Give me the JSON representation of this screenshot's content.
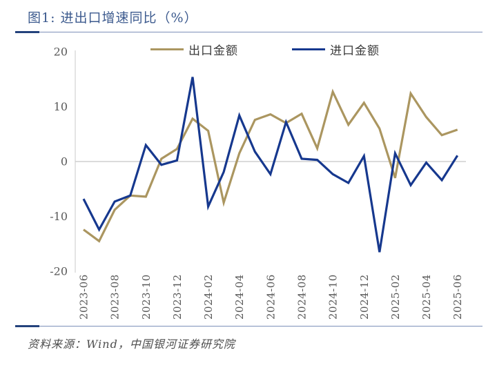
{
  "title": "图1: 进出口增速同比（%）",
  "source": "资料来源：Wind，中国银河证券研究院",
  "colors": {
    "export": "#ab9660",
    "import": "#16388e",
    "title_text": "#3c5a8e",
    "rule_line": "#7c8fb8",
    "rule_accent": "#24427c",
    "axis_line": "#c9c9c9",
    "zero_line": "#cfcfcf",
    "axis_text": "#595959",
    "legend_text": "#3a3a3a",
    "source_text": "#4d4d4d"
  },
  "chart_data": {
    "type": "line",
    "title": "图1: 进出口增速同比（%）",
    "xlabel": "",
    "ylabel": "",
    "ylim": [
      -20,
      20
    ],
    "yticks": [
      "20",
      "10",
      "0",
      "-10",
      "-20"
    ],
    "grid": "zero-line-only",
    "legend_position": "top",
    "x": [
      "2023-06",
      "2023-07",
      "2023-08",
      "2023-09",
      "2023-10",
      "2023-11",
      "2023-12",
      "2024-01",
      "2024-02",
      "2024-03",
      "2024-04",
      "2024-05",
      "2024-06",
      "2024-07",
      "2024-08",
      "2024-09",
      "2024-10",
      "2024-11",
      "2024-12",
      "2025-01",
      "2025-02",
      "2025-03",
      "2025-04",
      "2025-05",
      "2025-06"
    ],
    "xtick_labels": [
      "2023-06",
      "2023-08",
      "2023-10",
      "2023-12",
      "2024-02",
      "2024-04",
      "2024-06",
      "2024-08",
      "2024-10",
      "2024-12",
      "2025-02",
      "2025-04",
      "2025-06"
    ],
    "series": [
      {
        "name": "出口金额",
        "color_key": "export",
        "values": [
          -12.4,
          -14.5,
          -8.8,
          -6.2,
          -6.4,
          0.5,
          2.3,
          7.8,
          5.6,
          -7.5,
          1.5,
          7.6,
          8.6,
          7.0,
          8.7,
          2.4,
          12.7,
          6.7,
          10.7,
          6.0,
          -3.0,
          12.4,
          8.1,
          4.8,
          5.8
        ]
      },
      {
        "name": "进口金额",
        "color_key": "import",
        "values": [
          -6.8,
          -12.4,
          -7.3,
          -6.2,
          3.0,
          -0.6,
          0.2,
          15.4,
          -8.2,
          -1.9,
          8.4,
          1.8,
          -2.3,
          7.2,
          0.5,
          0.3,
          -2.3,
          -3.9,
          1.0,
          -16.5,
          1.5,
          -4.3,
          -0.2,
          -3.4,
          1.1
        ]
      }
    ]
  }
}
